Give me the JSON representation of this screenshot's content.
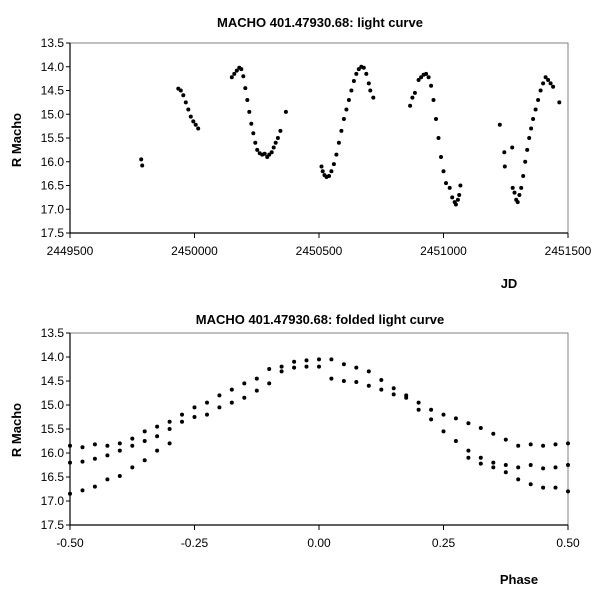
{
  "chart_data": [
    {
      "type": "scatter",
      "title": "MACHO 401.47930.68: light curve",
      "xlabel": "JD",
      "ylabel": "R Macho",
      "xlim": [
        2449500,
        2451500
      ],
      "ylim": [
        13.5,
        17.5
      ],
      "y_inverted": true,
      "grid": false,
      "xticks": [
        "2449500",
        "2450000",
        "2450500",
        "2451000",
        "2451500"
      ],
      "xtick_values": [
        2449500,
        2450000,
        2450500,
        2451000,
        2451500
      ],
      "yticks": [
        "13.5",
        "14.0",
        "14.5",
        "15.0",
        "15.5",
        "16.0",
        "16.5",
        "17.0",
        "17.5"
      ],
      "ytick_values": [
        13.5,
        14.0,
        14.5,
        15.0,
        15.5,
        16.0,
        16.5,
        17.0,
        17.5
      ],
      "marker_color": "#000000",
      "points": [
        [
          2449786,
          15.95
        ],
        [
          2449790,
          16.08
        ],
        [
          2449935,
          14.46
        ],
        [
          2449945,
          14.5
        ],
        [
          2449955,
          14.6
        ],
        [
          2449965,
          14.75
        ],
        [
          2449975,
          14.9
        ],
        [
          2449985,
          15.05
        ],
        [
          2449995,
          15.15
        ],
        [
          2450005,
          15.22
        ],
        [
          2450015,
          15.3
        ],
        [
          2450150,
          14.22
        ],
        [
          2450160,
          14.15
        ],
        [
          2450170,
          14.08
        ],
        [
          2450180,
          14.02
        ],
        [
          2450188,
          14.05
        ],
        [
          2450196,
          14.2
        ],
        [
          2450204,
          14.45
        ],
        [
          2450212,
          14.7
        ],
        [
          2450220,
          14.95
        ],
        [
          2450228,
          15.2
        ],
        [
          2450236,
          15.4
        ],
        [
          2450244,
          15.6
        ],
        [
          2450252,
          15.75
        ],
        [
          2450262,
          15.82
        ],
        [
          2450272,
          15.85
        ],
        [
          2450282,
          15.83
        ],
        [
          2450292,
          15.9
        ],
        [
          2450300,
          15.85
        ],
        [
          2450310,
          15.8
        ],
        [
          2450318,
          15.7
        ],
        [
          2450326,
          15.6
        ],
        [
          2450335,
          15.5
        ],
        [
          2450345,
          15.35
        ],
        [
          2450367,
          14.95
        ],
        [
          2450510,
          16.1
        ],
        [
          2450515,
          16.2
        ],
        [
          2450522,
          16.28
        ],
        [
          2450530,
          16.32
        ],
        [
          2450540,
          16.3
        ],
        [
          2450550,
          16.2
        ],
        [
          2450560,
          16.05
        ],
        [
          2450570,
          15.85
        ],
        [
          2450580,
          15.6
        ],
        [
          2450590,
          15.35
        ],
        [
          2450600,
          15.1
        ],
        [
          2450610,
          14.9
        ],
        [
          2450620,
          14.7
        ],
        [
          2450630,
          14.5
        ],
        [
          2450640,
          14.3
        ],
        [
          2450650,
          14.15
        ],
        [
          2450660,
          14.05
        ],
        [
          2450670,
          14.0
        ],
        [
          2450680,
          14.02
        ],
        [
          2450690,
          14.15
        ],
        [
          2450700,
          14.35
        ],
        [
          2450706,
          14.5
        ],
        [
          2450718,
          14.65
        ],
        [
          2450866,
          14.82
        ],
        [
          2450875,
          14.65
        ],
        [
          2450885,
          14.55
        ],
        [
          2450900,
          14.28
        ],
        [
          2450910,
          14.22
        ],
        [
          2450920,
          14.17
        ],
        [
          2450930,
          14.15
        ],
        [
          2450940,
          14.22
        ],
        [
          2450950,
          14.4
        ],
        [
          2450960,
          14.7
        ],
        [
          2450970,
          15.1
        ],
        [
          2450980,
          15.5
        ],
        [
          2450990,
          15.9
        ],
        [
          2451000,
          16.2
        ],
        [
          2451010,
          16.45
        ],
        [
          2451025,
          16.55
        ],
        [
          2451035,
          16.75
        ],
        [
          2451045,
          16.85
        ],
        [
          2451050,
          16.9
        ],
        [
          2451058,
          16.8
        ],
        [
          2451063,
          16.7
        ],
        [
          2451068,
          16.5
        ],
        [
          2451226,
          15.22
        ],
        [
          2451244,
          15.8
        ],
        [
          2451246,
          16.1
        ],
        [
          2451276,
          15.7
        ],
        [
          2451278,
          16.55
        ],
        [
          2451285,
          16.65
        ],
        [
          2451292,
          16.8
        ],
        [
          2451298,
          16.85
        ],
        [
          2451305,
          16.7
        ],
        [
          2451312,
          16.55
        ],
        [
          2451320,
          16.3
        ],
        [
          2451328,
          16.0
        ],
        [
          2451336,
          15.75
        ],
        [
          2451344,
          15.5
        ],
        [
          2451352,
          15.3
        ],
        [
          2451360,
          15.1
        ],
        [
          2451370,
          14.9
        ],
        [
          2451380,
          14.7
        ],
        [
          2451390,
          14.5
        ],
        [
          2451400,
          14.35
        ],
        [
          2451410,
          14.22
        ],
        [
          2451420,
          14.28
        ],
        [
          2451430,
          14.35
        ],
        [
          2451440,
          14.42
        ],
        [
          2451465,
          14.75
        ]
      ]
    },
    {
      "type": "scatter",
      "title": "MACHO 401.47930.68: folded light curve",
      "xlabel": "Phase",
      "ylabel": "R Macho",
      "xlim": [
        -0.5,
        0.5
      ],
      "ylim": [
        13.5,
        17.5
      ],
      "y_inverted": true,
      "grid": false,
      "xticks": [
        "-0.50",
        "-0.25",
        "0.00",
        "0.25",
        "0.50"
      ],
      "xtick_values": [
        -0.5,
        -0.25,
        0,
        0.25,
        0.5
      ],
      "yticks": [
        "13.5",
        "14.0",
        "14.5",
        "15.0",
        "15.5",
        "16.0",
        "16.5",
        "17.0",
        "17.5"
      ],
      "ytick_values": [
        13.5,
        14.0,
        14.5,
        15.0,
        15.5,
        16.0,
        16.5,
        17.0,
        17.5
      ],
      "marker_color": "#000000",
      "points": [
        [
          -0.5,
          15.85
        ],
        [
          -0.475,
          15.88
        ],
        [
          -0.45,
          15.82
        ],
        [
          -0.425,
          15.85
        ],
        [
          -0.4,
          15.8
        ],
        [
          -0.375,
          15.7
        ],
        [
          -0.35,
          15.55
        ],
        [
          -0.325,
          15.45
        ],
        [
          -0.3,
          15.35
        ],
        [
          -0.275,
          15.2
        ],
        [
          -0.25,
          15.05
        ],
        [
          -0.225,
          14.95
        ],
        [
          -0.2,
          14.8
        ],
        [
          -0.175,
          14.68
        ],
        [
          -0.15,
          14.55
        ],
        [
          -0.125,
          14.45
        ],
        [
          -0.1,
          14.25
        ],
        [
          -0.075,
          14.2
        ],
        [
          -0.05,
          14.1
        ],
        [
          -0.025,
          14.07
        ],
        [
          0,
          14.05
        ],
        [
          0.025,
          14.05
        ],
        [
          0.05,
          14.15
        ],
        [
          0.075,
          14.22
        ],
        [
          0.1,
          14.3
        ],
        [
          0.125,
          14.48
        ],
        [
          0.15,
          14.65
        ],
        [
          0.175,
          14.8
        ],
        [
          0.2,
          14.95
        ],
        [
          0.225,
          15.1
        ],
        [
          0.25,
          15.2
        ],
        [
          0.275,
          15.28
        ],
        [
          0.3,
          15.38
        ],
        [
          0.325,
          15.48
        ],
        [
          0.35,
          15.6
        ],
        [
          0.375,
          15.72
        ],
        [
          0.4,
          15.85
        ],
        [
          0.425,
          15.82
        ],
        [
          0.45,
          15.85
        ],
        [
          0.475,
          15.82
        ],
        [
          0.5,
          15.8
        ],
        [
          -0.5,
          16.2
        ],
        [
          -0.475,
          16.18
        ],
        [
          -0.45,
          16.12
        ],
        [
          -0.425,
          16.05
        ],
        [
          -0.4,
          15.95
        ],
        [
          -0.375,
          15.85
        ],
        [
          -0.35,
          15.75
        ],
        [
          -0.325,
          15.65
        ],
        [
          -0.3,
          15.5
        ],
        [
          -0.275,
          15.35
        ],
        [
          -0.25,
          15.25
        ],
        [
          -0.225,
          15.2
        ],
        [
          -0.2,
          15.05
        ],
        [
          -0.175,
          14.95
        ],
        [
          -0.15,
          14.85
        ],
        [
          -0.125,
          14.7
        ],
        [
          -0.1,
          14.55
        ],
        [
          -0.075,
          14.3
        ],
        [
          -0.05,
          14.22
        ],
        [
          -0.025,
          14.2
        ],
        [
          0,
          14.2
        ],
        [
          0.025,
          14.45
        ],
        [
          0.05,
          14.5
        ],
        [
          0.075,
          14.52
        ],
        [
          0.1,
          14.6
        ],
        [
          0.125,
          14.68
        ],
        [
          0.15,
          14.78
        ],
        [
          0.175,
          14.85
        ],
        [
          0.2,
          15.1
        ],
        [
          0.225,
          15.3
        ],
        [
          0.25,
          15.55
        ],
        [
          0.275,
          15.75
        ],
        [
          0.3,
          15.95
        ],
        [
          0.325,
          16.1
        ],
        [
          0.35,
          16.2
        ],
        [
          0.375,
          16.25
        ],
        [
          0.4,
          16.3
        ],
        [
          0.425,
          16.25
        ],
        [
          0.45,
          16.32
        ],
        [
          0.475,
          16.3
        ],
        [
          0.5,
          16.25
        ],
        [
          -0.5,
          16.85
        ],
        [
          -0.475,
          16.78
        ],
        [
          -0.45,
          16.7
        ],
        [
          -0.425,
          16.55
        ],
        [
          -0.4,
          16.48
        ],
        [
          -0.375,
          16.3
        ],
        [
          -0.35,
          16.15
        ],
        [
          -0.325,
          15.95
        ],
        [
          -0.3,
          15.8
        ],
        [
          0.3,
          16.1
        ],
        [
          0.325,
          16.22
        ],
        [
          0.35,
          16.3
        ],
        [
          0.375,
          16.4
        ],
        [
          0.4,
          16.55
        ],
        [
          0.425,
          16.65
        ],
        [
          0.45,
          16.72
        ],
        [
          0.475,
          16.72
        ],
        [
          0.5,
          16.8
        ]
      ]
    }
  ]
}
